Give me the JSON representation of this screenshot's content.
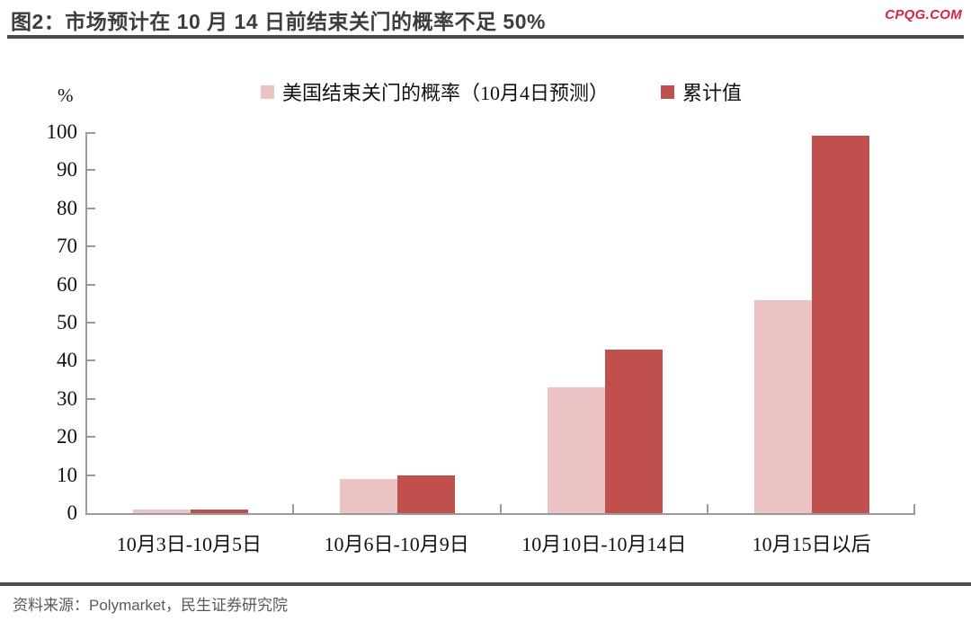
{
  "header": {
    "title": "图2：市场预计在 10 月 14 日前结束关门的概率不足 50%",
    "brand": "CPQG.COM"
  },
  "chart_data": {
    "type": "bar",
    "title": "市场预计在 10 月 14 日前结束关门的概率不足 50%",
    "unit": "%",
    "ylabel": "%",
    "xlabel": "",
    "ylim": [
      0,
      100
    ],
    "y_tick_step": 10,
    "grid": false,
    "legend_position": "top-center",
    "categories": [
      "10月3日-10月5日",
      "10月6日-10月9日",
      "10月10日-10月14日",
      "10月15日以后"
    ],
    "series": [
      {
        "name": "美国结束关门的概率（10月4日预测）",
        "color": "#ECC3C5",
        "values": [
          1,
          9,
          33,
          56
        ]
      },
      {
        "name": "累计值",
        "color": "#C0504D",
        "values": [
          1,
          10,
          43,
          99
        ]
      }
    ]
  },
  "footer": {
    "source_line": "资料来源：Polymarket，民生证券研究院"
  },
  "colors": {
    "axis": "#9a9a9a",
    "title_text": "#3d3d3d",
    "title_rule": "#4a4a4a",
    "brand": "#e02145",
    "footer_rule": "#4d4d4d",
    "footer_text": "#595959"
  }
}
